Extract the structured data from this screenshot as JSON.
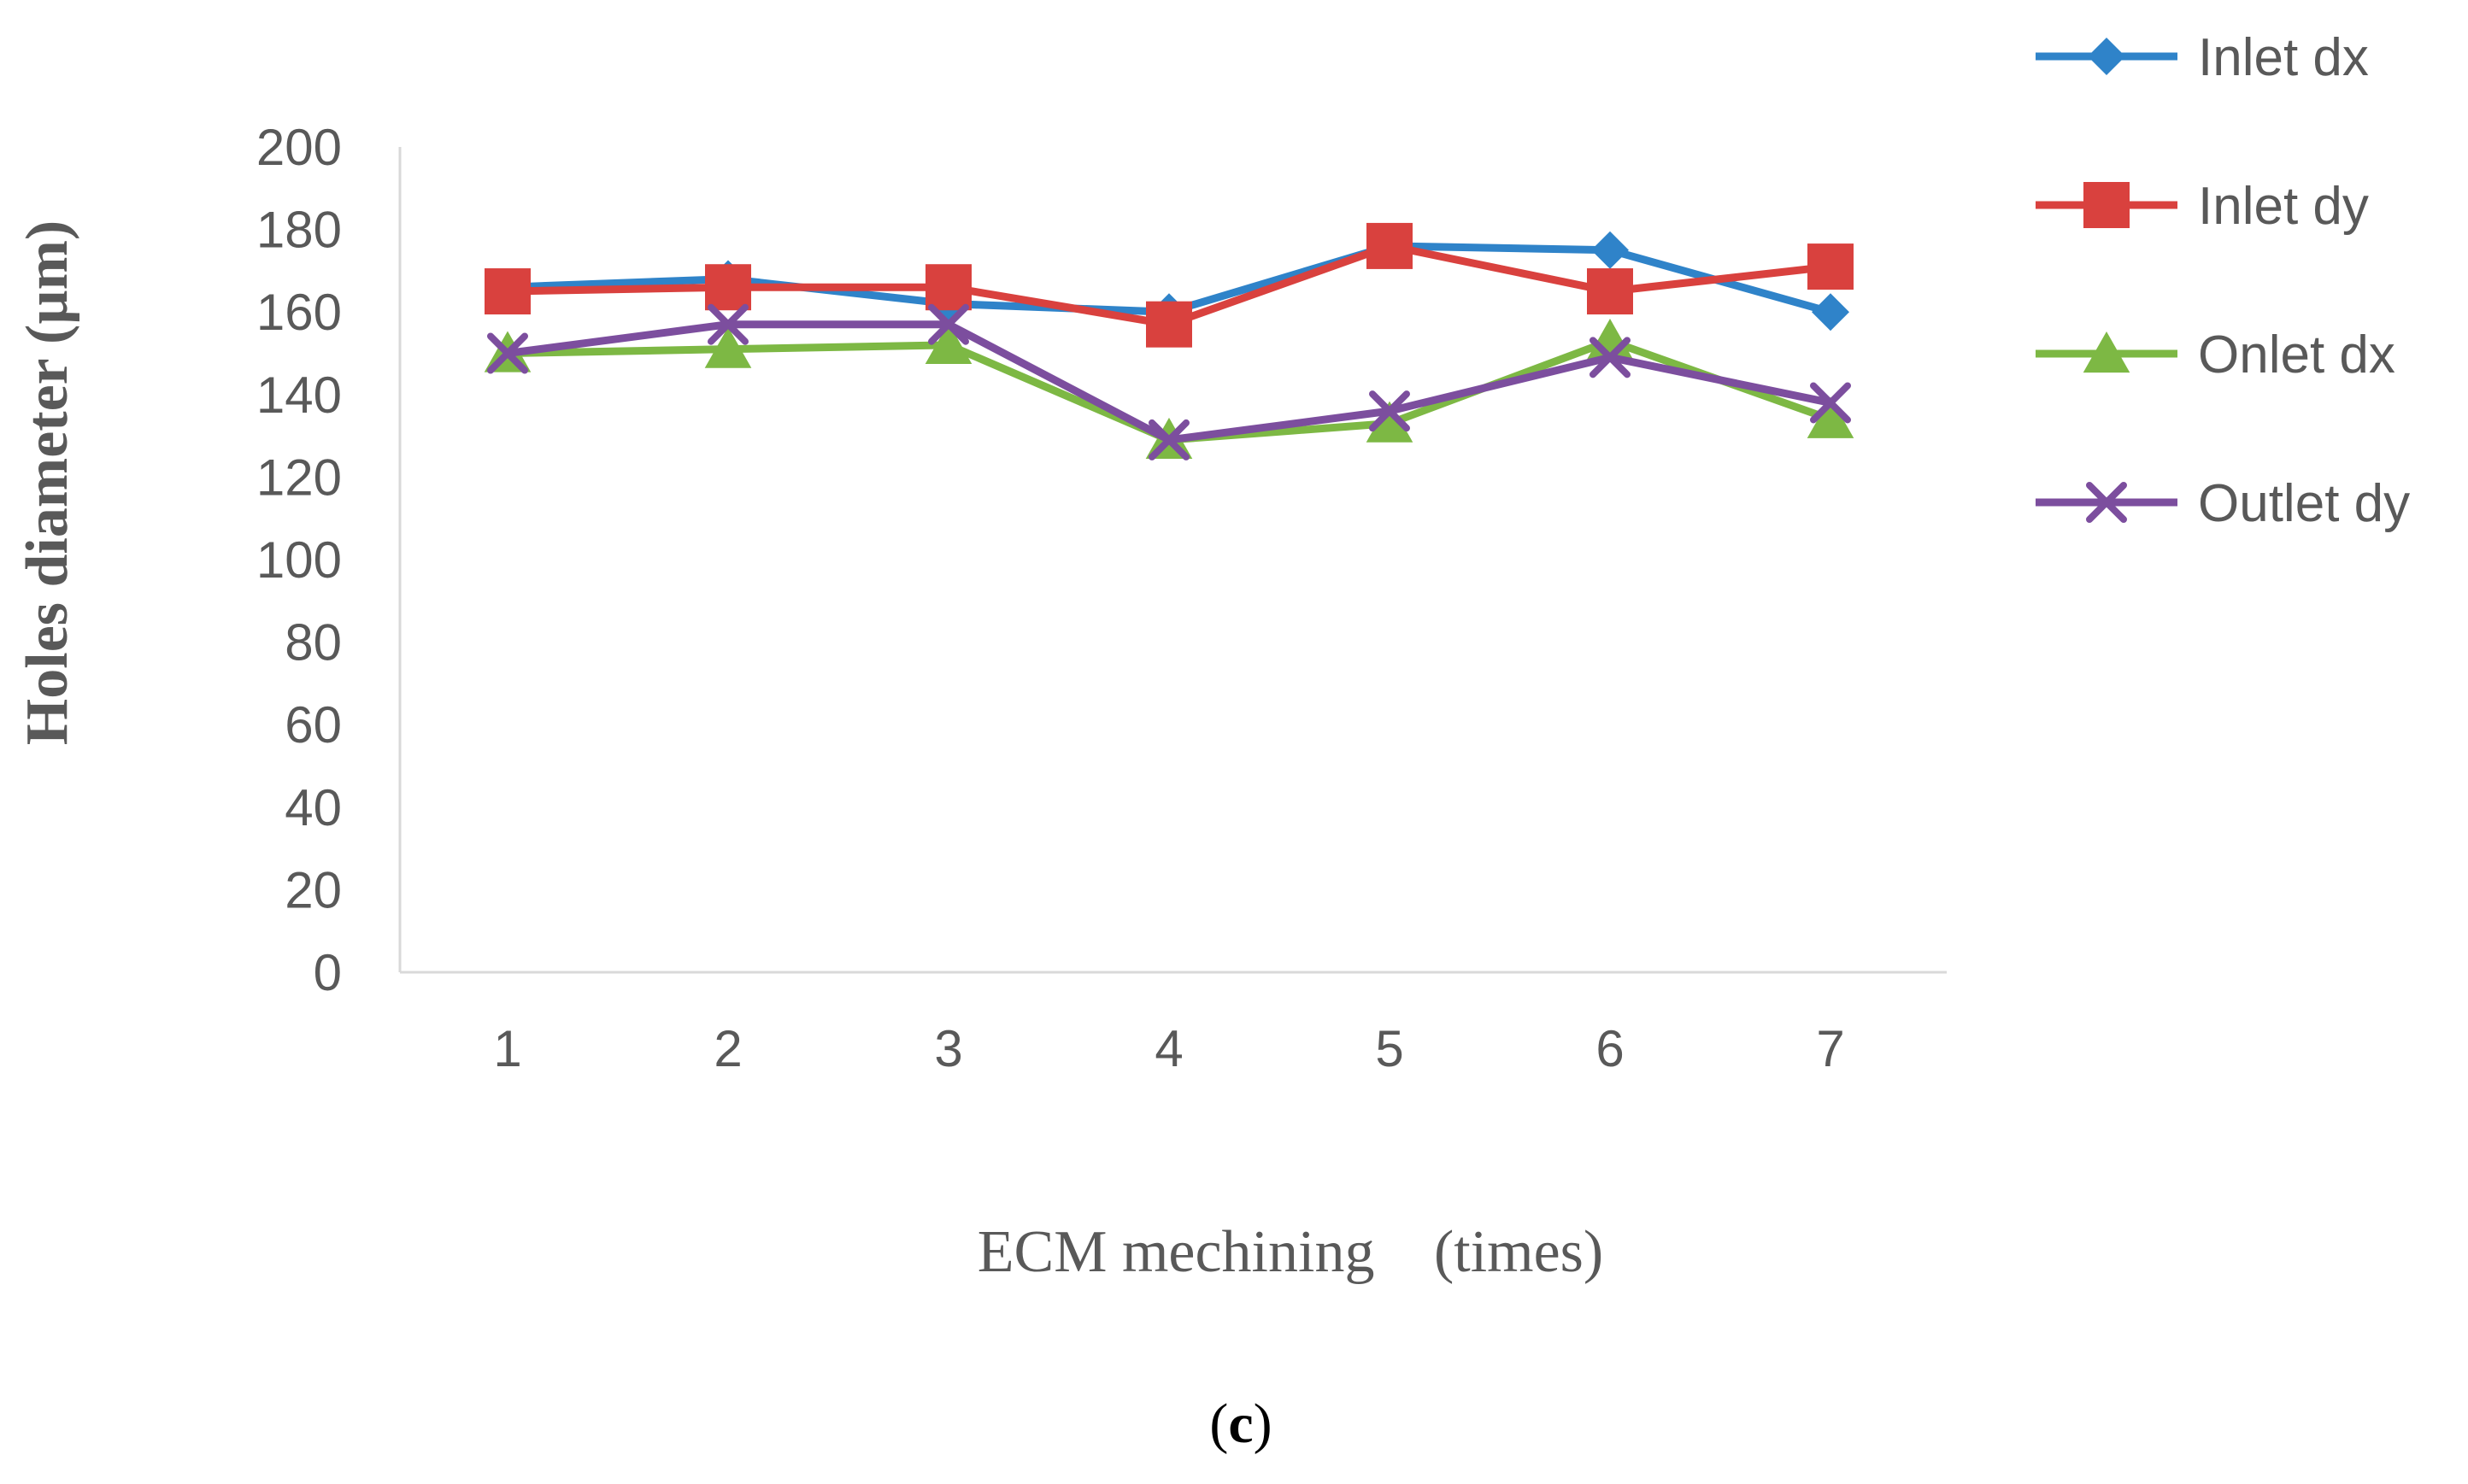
{
  "chart_data": {
    "type": "line",
    "x": [
      1,
      2,
      3,
      4,
      5,
      6,
      7
    ],
    "xlabel": {
      "main": "ECM mechining",
      "unit": "(times)"
    },
    "ylabel": "Holes diameter (µm)",
    "ylim": [
      0,
      200
    ],
    "yticks": [
      0,
      20,
      40,
      60,
      80,
      100,
      120,
      140,
      160,
      180,
      200
    ],
    "grid": false,
    "legend_position": "top-right",
    "panel_label": {
      "open": "(",
      "letter": "c",
      "close": ")"
    },
    "series": [
      {
        "name": "Inlet dx",
        "color": "#2f83c9",
        "marker": "diamond",
        "values": [
          166,
          168,
          162,
          160,
          176,
          175,
          160
        ]
      },
      {
        "name": "Inlet dy",
        "color": "#d9413e",
        "marker": "square",
        "values": [
          165,
          166,
          166,
          157,
          176,
          165,
          171
        ]
      },
      {
        "name": "Onlet dx",
        "color": "#7db844",
        "marker": "triangle",
        "values": [
          150,
          151,
          152,
          129,
          133,
          153,
          134
        ]
      },
      {
        "name": "Outlet dy",
        "color": "#7c4e9e",
        "marker": "cross",
        "values": [
          150,
          157,
          157,
          129,
          136,
          149,
          138
        ]
      }
    ]
  }
}
